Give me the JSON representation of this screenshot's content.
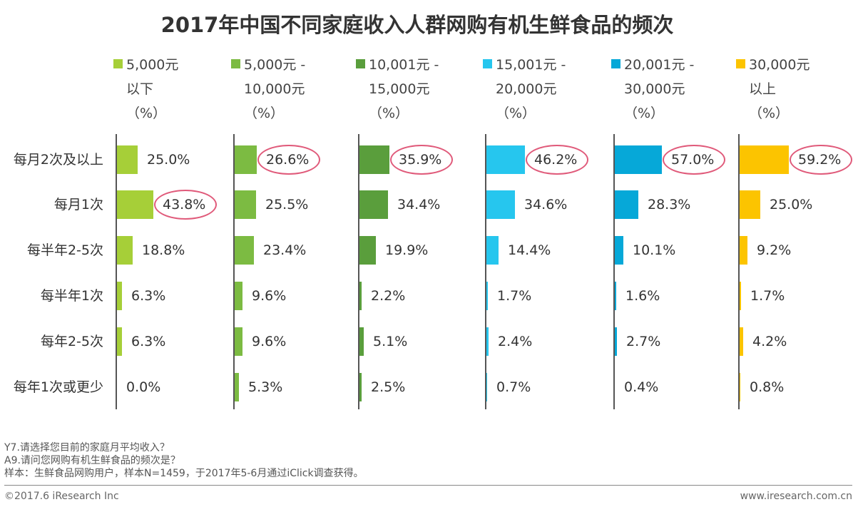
{
  "title": "2017年中国不同家庭收入人群网购有机生鲜食品的频次",
  "chart_data": {
    "type": "bar",
    "orientation": "horizontal",
    "title": "2017年中国不同家庭收入人群网购有机生鲜食品的频次",
    "categories": [
      "每月2次及以上",
      "每月1次",
      "每半年2-5次",
      "每半年1次",
      "每年2-5次",
      "每年1次或更少"
    ],
    "series": [
      {
        "name": "5,000元以下（%）",
        "legend_lines": [
          "5,000元",
          "以下",
          "（%）"
        ],
        "color": "#a6cf38",
        "values": [
          25.0,
          43.8,
          18.8,
          6.3,
          6.3,
          0.0
        ],
        "highlight_index": 1
      },
      {
        "name": "5,000元 - 10,000元（%）",
        "legend_lines": [
          "5,000元 -",
          "10,000元",
          "（%）"
        ],
        "color": "#7cbb42",
        "values": [
          26.6,
          25.5,
          23.4,
          9.6,
          9.6,
          5.3
        ],
        "highlight_index": 0
      },
      {
        "name": "10,001元 - 15,000元（%）",
        "legend_lines": [
          "10,001元 -",
          "15,000元",
          "（%）"
        ],
        "color": "#5a9e3c",
        "values": [
          35.9,
          34.4,
          19.9,
          2.2,
          5.1,
          2.5
        ],
        "highlight_index": 0
      },
      {
        "name": "15,001元 - 20,000元（%）",
        "legend_lines": [
          "15,001元 -",
          "20,000元",
          "（%）"
        ],
        "color": "#26c6ee",
        "values": [
          46.2,
          34.6,
          14.4,
          1.7,
          2.4,
          0.7
        ],
        "highlight_index": 0
      },
      {
        "name": "20,001元 - 30,000元（%）",
        "legend_lines": [
          "20,001元 -",
          "30,000元",
          "（%）"
        ],
        "color": "#06a8d8",
        "values": [
          57.0,
          28.3,
          10.1,
          1.6,
          2.7,
          0.4
        ],
        "highlight_index": 0
      },
      {
        "name": "30,000元以上（%）",
        "legend_lines": [
          "30,000元",
          "以上",
          "（%）"
        ],
        "color": "#fcc400",
        "values": [
          59.2,
          25.0,
          9.2,
          1.7,
          4.2,
          0.8
        ],
        "highlight_index": 0
      }
    ],
    "value_format": "0.0%",
    "highlight_color": "#e05a7a"
  },
  "notes": [
    "Y7.请选择您目前的家庭月平均收入？",
    "A9.请问您网购有机生鲜食品的频次是？",
    "样本：生鲜食品网购用户，样本N=1459，于2017年5-6月通过iClick调查获得。"
  ],
  "footer": {
    "left": "©2017.6 iResearch Inc",
    "right": "www.iresearch.com.cn"
  }
}
